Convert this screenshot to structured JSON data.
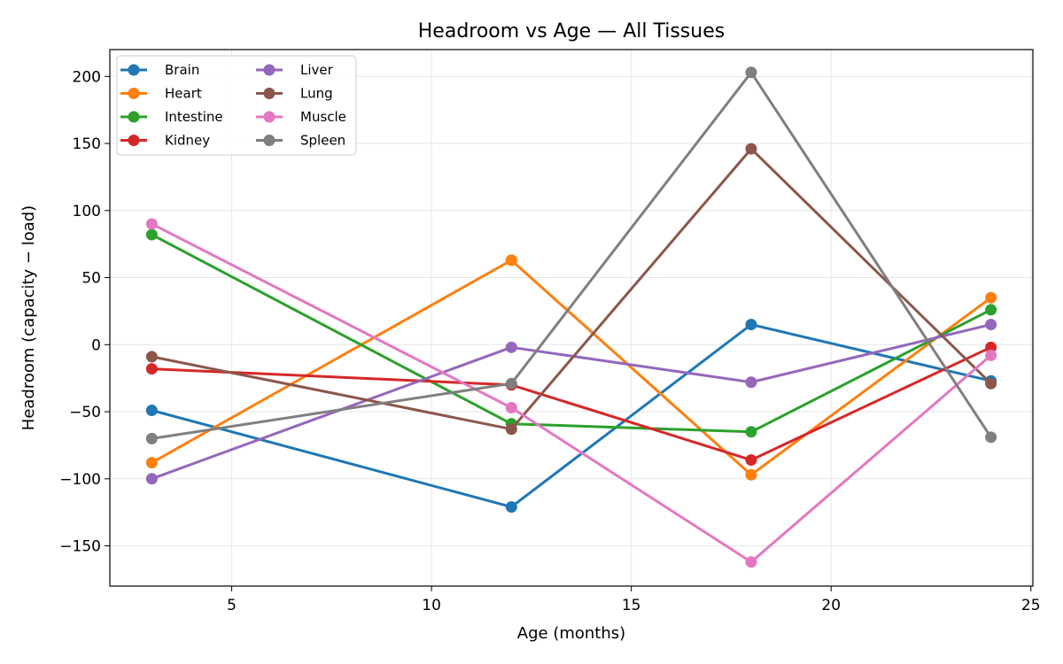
{
  "chart_data": {
    "type": "line",
    "title": "Headroom vs Age — All Tissues",
    "xlabel": "Age (months)",
    "ylabel": "Headroom (capacity − load)",
    "xlim": [
      1.95,
      25.05
    ],
    "ylim": [
      -180,
      220
    ],
    "xticks": [
      5,
      10,
      15,
      20,
      25
    ],
    "xtick_labels": [
      "5",
      "10",
      "15",
      "20",
      "25"
    ],
    "yticks": [
      -150,
      -100,
      -50,
      0,
      50,
      100,
      150,
      200
    ],
    "ytick_labels": [
      "−150",
      "−100",
      "−50",
      "0",
      "50",
      "100",
      "150",
      "200"
    ],
    "grid": true,
    "legend_position": "top-left",
    "legend_columns": 2,
    "x": [
      3,
      12,
      18,
      24
    ],
    "series": [
      {
        "name": "Brain",
        "color": "#1f77b4",
        "values": [
          -49,
          -121,
          15,
          -27
        ]
      },
      {
        "name": "Heart",
        "color": "#ff7f0e",
        "values": [
          -88,
          63,
          -97,
          35
        ]
      },
      {
        "name": "Intestine",
        "color": "#2ca02c",
        "values": [
          82,
          -59,
          -65,
          26
        ]
      },
      {
        "name": "Kidney",
        "color": "#d62728",
        "values": [
          -18,
          -30,
          -86,
          -2
        ]
      },
      {
        "name": "Liver",
        "color": "#9467bd",
        "values": [
          -100,
          -2,
          -28,
          15
        ]
      },
      {
        "name": "Lung",
        "color": "#8c564b",
        "values": [
          -9,
          -63,
          146,
          -29
        ]
      },
      {
        "name": "Muscle",
        "color": "#e377c2",
        "values": [
          90,
          -47,
          -162,
          -8
        ]
      },
      {
        "name": "Spleen",
        "color": "#7f7f7f",
        "values": [
          -70,
          -29,
          203,
          -69
        ]
      }
    ]
  }
}
